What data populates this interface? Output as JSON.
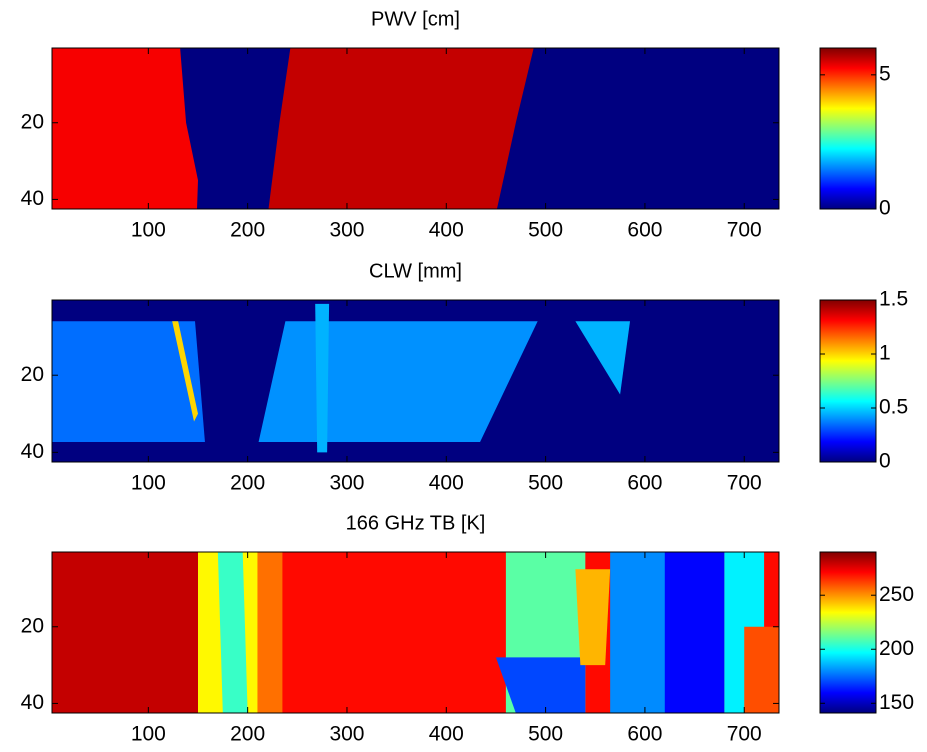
{
  "chart_data": [
    {
      "type": "heatmap",
      "title": "PWV [cm]",
      "colormap": "jet",
      "xlim": [
        3,
        735
      ],
      "ylim": [
        0.5,
        42.5
      ],
      "xticks": [
        100,
        200,
        300,
        400,
        500,
        600,
        700
      ],
      "yticks": [
        20,
        40
      ],
      "clim": [
        0,
        6
      ],
      "cticks": [
        0,
        5
      ],
      "background": 0,
      "regions": [
        {
          "value": 5.3,
          "x": [
            3,
            132,
            138,
            150,
            149,
            3
          ],
          "y": [
            0.5,
            0.5,
            20,
            35,
            42.5,
            42.5
          ]
        },
        {
          "value": 5.6,
          "x": [
            243,
            488,
            470,
            451,
            221,
            232
          ],
          "y": [
            0.5,
            0.5,
            20,
            42.5,
            42.5,
            20
          ]
        }
      ]
    },
    {
      "type": "heatmap",
      "title": "CLW [mm]",
      "colormap": "jet",
      "xlim": [
        3,
        735
      ],
      "ylim": [
        0.5,
        42.5
      ],
      "xticks": [
        100,
        200,
        300,
        400,
        500,
        600,
        700
      ],
      "yticks": [
        20,
        40
      ],
      "clim": [
        0,
        1.5
      ],
      "cticks": [
        0,
        0.5,
        1,
        1.5
      ],
      "background": 0,
      "regions": [
        {
          "value": 0.35,
          "x": [
            3,
            147,
            157,
            3
          ],
          "y": [
            6,
            6,
            37.3,
            37.3
          ]
        },
        {
          "value": 0.4,
          "x": [
            238,
            492,
            434,
            211
          ],
          "y": [
            6,
            6,
            37.3,
            37.3
          ]
        },
        {
          "value": 0.45,
          "x": [
            530,
            585,
            575
          ],
          "y": [
            6,
            6,
            25
          ]
        },
        {
          "value": 1.0,
          "x": [
            124,
            130,
            150,
            146
          ],
          "y": [
            6,
            6,
            30,
            32
          ]
        },
        {
          "value": 0.45,
          "x": [
            268,
            282,
            280,
            270
          ],
          "y": [
            1.5,
            1.5,
            40,
            40
          ]
        }
      ]
    },
    {
      "type": "heatmap",
      "title": "166 GHz TB [K]",
      "colormap": "jet",
      "xlim": [
        3,
        735
      ],
      "ylim": [
        0.5,
        42.5
      ],
      "xticks": [
        100,
        200,
        300,
        400,
        500,
        600,
        700
      ],
      "yticks": [
        20,
        40
      ],
      "clim": [
        141,
        290
      ],
      "cticks": [
        150,
        200,
        250
      ],
      "background": 270,
      "regions": [
        {
          "value": 280,
          "x": [
            3,
            150,
            150,
            3
          ],
          "y": [
            0.5,
            0.5,
            42.5,
            42.5
          ]
        },
        {
          "value": 235,
          "x": [
            150,
            210,
            210,
            150
          ],
          "y": [
            0.5,
            0.5,
            42.5,
            42.5
          ]
        },
        {
          "value": 205,
          "x": [
            170,
            195,
            200,
            175
          ],
          "y": [
            0.5,
            0.5,
            42.5,
            42.5
          ]
        },
        {
          "value": 255,
          "x": [
            210,
            235,
            235,
            210
          ],
          "y": [
            0.5,
            0.5,
            42.5,
            42.5
          ]
        },
        {
          "value": 210,
          "x": [
            460,
            540,
            540,
            460
          ],
          "y": [
            0.5,
            0.5,
            42.5,
            42.5
          ]
        },
        {
          "value": 170,
          "x": [
            450,
            540,
            540,
            470
          ],
          "y": [
            28,
            28,
            42.5,
            42.5
          ]
        },
        {
          "value": 245,
          "x": [
            530,
            565,
            560,
            535
          ],
          "y": [
            5,
            5,
            30,
            30
          ]
        },
        {
          "value": 180,
          "x": [
            565,
            660,
            660,
            565
          ],
          "y": [
            0.5,
            0.5,
            42.5,
            42.5
          ]
        },
        {
          "value": 160,
          "x": [
            620,
            680,
            680,
            620
          ],
          "y": [
            0.5,
            0.5,
            42.5,
            42.5
          ]
        },
        {
          "value": 195,
          "x": [
            680,
            720,
            720,
            680
          ],
          "y": [
            0.5,
            0.5,
            42.5,
            42.5
          ]
        },
        {
          "value": 260,
          "x": [
            700,
            735,
            735,
            700
          ],
          "y": [
            20,
            20,
            42.5,
            42.5
          ]
        }
      ]
    }
  ]
}
